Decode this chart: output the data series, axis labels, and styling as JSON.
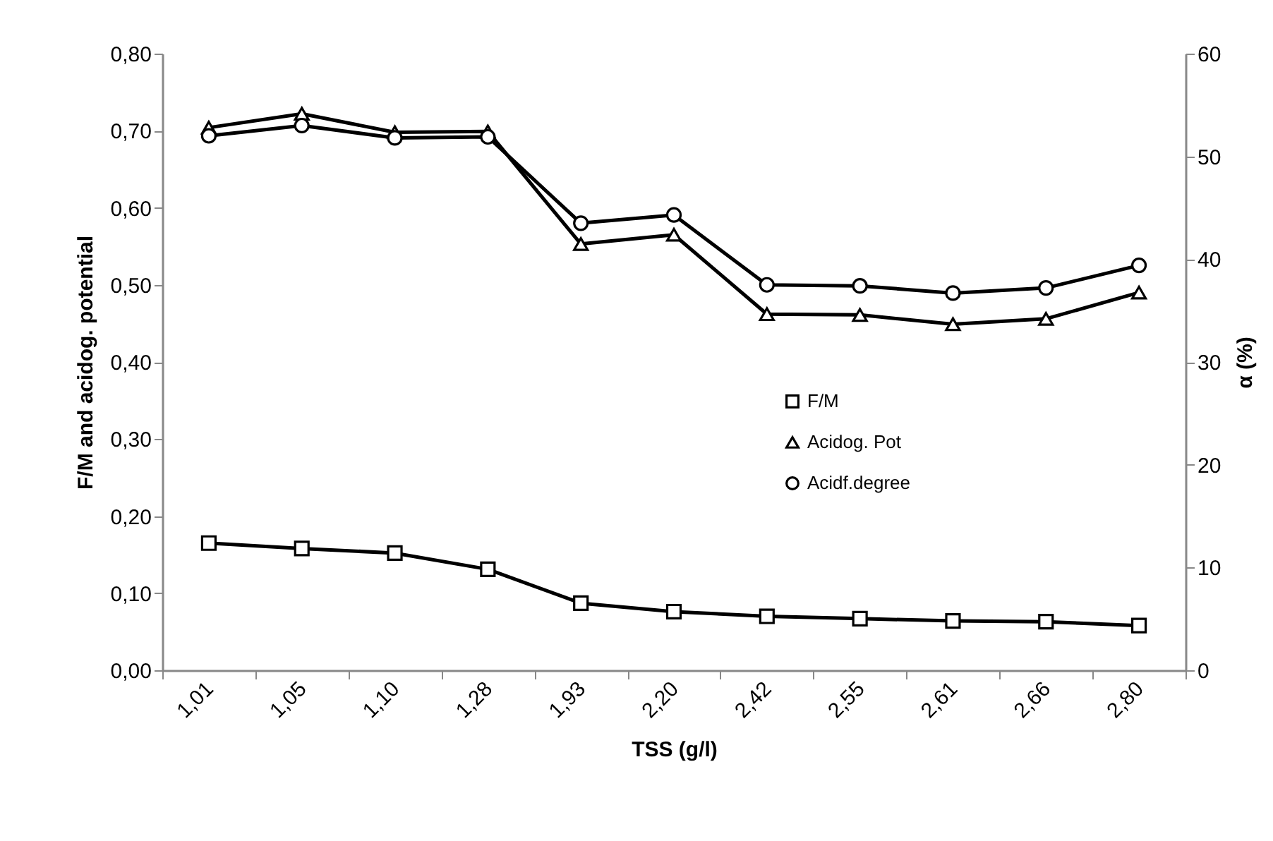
{
  "chart_data": {
    "type": "line",
    "xlabel": "TSS (g/l)",
    "ylabel": "F/M and acidog. potential",
    "y2label": "α (%)",
    "categories": [
      "1,01",
      "1,05",
      "1,10",
      "1,28",
      "1,93",
      "2,20",
      "2,42",
      "2,55",
      "2,61",
      "2,66",
      "2,80"
    ],
    "series": [
      {
        "name": "F/M",
        "color": "#000000",
        "marker": "square",
        "values": [
          0.165,
          0.158,
          0.152,
          0.131,
          0.087,
          0.076,
          0.07,
          0.067,
          0.064,
          0.063,
          0.058
        ]
      },
      {
        "name": "Acidog. Pot",
        "color": "#000000",
        "marker": "triangle",
        "values": [
          0.704,
          0.722,
          0.698,
          0.699,
          0.553,
          0.565,
          0.462,
          0.461,
          0.449,
          0.456,
          0.49
        ]
      },
      {
        "name": "Acidf.degree",
        "color": "#000000",
        "marker": "circle",
        "axis": "y2",
        "values": [
          52.0,
          53.0,
          51.8,
          51.9,
          43.5,
          44.3,
          37.5,
          37.4,
          36.7,
          37.2,
          39.4
        ]
      }
    ],
    "ylim": [
      0,
      0.8
    ],
    "yticks": [
      {
        "value": 0,
        "label": "0,00"
      },
      {
        "value": 0.1,
        "label": "0,10"
      },
      {
        "value": 0.2,
        "label": "0,20"
      },
      {
        "value": 0.3,
        "label": "0,30"
      },
      {
        "value": 0.4,
        "label": "0,40"
      },
      {
        "value": 0.5,
        "label": "0,50"
      },
      {
        "value": 0.6,
        "label": "0,60"
      },
      {
        "value": 0.7,
        "label": "0,70"
      },
      {
        "value": 0.8,
        "label": "0,80"
      }
    ],
    "y2lim": [
      0,
      60
    ],
    "y2ticks": [
      0,
      10,
      20,
      30,
      40,
      50,
      60
    ],
    "legend": "right",
    "grid": false,
    "line_style": "solid"
  }
}
